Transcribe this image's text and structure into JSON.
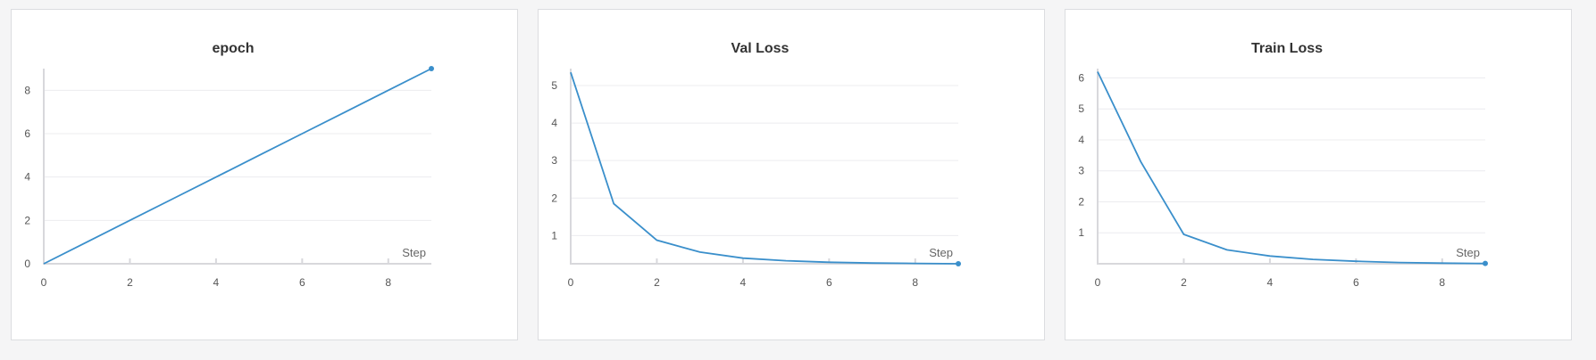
{
  "colors": {
    "series": "#3a8fcb",
    "background": "#f5f5f6",
    "panel": "#ffffff"
  },
  "chart_data": [
    {
      "type": "line",
      "title": "epoch",
      "xlabel": "Step",
      "ylabel": "",
      "xlim": [
        0,
        9
      ],
      "ylim": [
        0,
        9
      ],
      "x_ticks": [
        0,
        2,
        4,
        6,
        8
      ],
      "y_ticks": [
        0,
        2,
        4,
        6,
        8
      ],
      "grid": true,
      "series": [
        {
          "x": [
            0,
            1,
            2,
            3,
            4,
            5,
            6,
            7,
            8,
            9
          ],
          "y": [
            0,
            1,
            2,
            3,
            4,
            5,
            6,
            7,
            8,
            9
          ]
        }
      ]
    },
    {
      "type": "line",
      "title": "Val Loss",
      "xlabel": "Step",
      "ylabel": "",
      "xlim": [
        0,
        9
      ],
      "ylim": [
        0.25,
        5.45
      ],
      "x_ticks": [
        0,
        2,
        4,
        6,
        8
      ],
      "y_ticks": [
        1,
        2,
        3,
        4,
        5
      ],
      "grid": true,
      "series": [
        {
          "x": [
            0,
            1,
            2,
            3,
            4,
            5,
            6,
            7,
            8,
            9
          ],
          "y": [
            5.35,
            1.85,
            0.88,
            0.56,
            0.4,
            0.33,
            0.29,
            0.27,
            0.26,
            0.25
          ]
        }
      ]
    },
    {
      "type": "line",
      "title": "Train Loss",
      "xlabel": "Step",
      "ylabel": "",
      "xlim": [
        0,
        9
      ],
      "ylim": [
        0,
        6.3
      ],
      "x_ticks": [
        0,
        2,
        4,
        6,
        8
      ],
      "y_ticks": [
        1,
        2,
        3,
        4,
        5,
        6
      ],
      "grid": true,
      "series": [
        {
          "x": [
            0,
            1,
            2,
            3,
            4,
            5,
            6,
            7,
            8,
            9
          ],
          "y": [
            6.2,
            3.3,
            0.95,
            0.45,
            0.25,
            0.14,
            0.08,
            0.04,
            0.02,
            0.01
          ]
        }
      ]
    }
  ]
}
